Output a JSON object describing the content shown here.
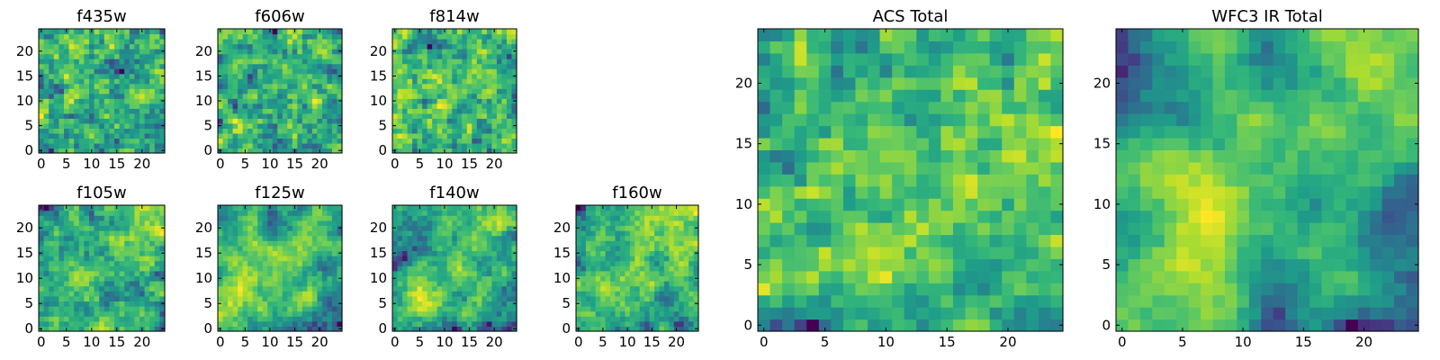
{
  "chart_data": [
    {
      "type": "heatmap",
      "title": "f435w",
      "grid_size": 25,
      "xticks": [
        0,
        5,
        10,
        15,
        20
      ],
      "yticks": [
        0,
        5,
        10,
        15,
        20
      ],
      "xlim": [
        -0.5,
        24.5
      ],
      "ylim": [
        -0.5,
        24.5
      ],
      "colormap": "viridis",
      "seed": 11,
      "smoothness": 0.2
    },
    {
      "type": "heatmap",
      "title": "f606w",
      "grid_size": 25,
      "xticks": [
        0,
        5,
        10,
        15,
        20
      ],
      "yticks": [
        0,
        5,
        10,
        15,
        20
      ],
      "xlim": [
        -0.5,
        24.5
      ],
      "ylim": [
        -0.5,
        24.5
      ],
      "colormap": "viridis",
      "seed": 23,
      "smoothness": 0.25
    },
    {
      "type": "heatmap",
      "title": "f814w",
      "grid_size": 25,
      "xticks": [
        0,
        5,
        10,
        15,
        20
      ],
      "yticks": [
        0,
        5,
        10,
        15,
        20
      ],
      "xlim": [
        -0.5,
        24.5
      ],
      "ylim": [
        -0.5,
        24.5
      ],
      "colormap": "viridis",
      "seed": 37,
      "smoothness": 0.3
    },
    {
      "type": "heatmap",
      "title": "f105w",
      "grid_size": 25,
      "xticks": [
        0,
        5,
        10,
        15,
        20
      ],
      "yticks": [
        0,
        5,
        10,
        15,
        20
      ],
      "xlim": [
        -0.5,
        24.5
      ],
      "ylim": [
        -0.5,
        24.5
      ],
      "colormap": "viridis",
      "seed": 41,
      "smoothness": 0.55
    },
    {
      "type": "heatmap",
      "title": "f125w",
      "grid_size": 25,
      "xticks": [
        0,
        5,
        10,
        15,
        20
      ],
      "yticks": [
        0,
        5,
        10,
        15,
        20
      ],
      "xlim": [
        -0.5,
        24.5
      ],
      "ylim": [
        -0.5,
        24.5
      ],
      "colormap": "viridis",
      "seed": 53,
      "smoothness": 0.6
    },
    {
      "type": "heatmap",
      "title": "f140w",
      "grid_size": 25,
      "xticks": [
        0,
        5,
        10,
        15,
        20
      ],
      "yticks": [
        0,
        5,
        10,
        15,
        20
      ],
      "xlim": [
        -0.5,
        24.5
      ],
      "ylim": [
        -0.5,
        24.5
      ],
      "colormap": "viridis",
      "seed": 67,
      "smoothness": 0.6
    },
    {
      "type": "heatmap",
      "title": "f160w",
      "grid_size": 25,
      "xticks": [
        0,
        5,
        10,
        15,
        20
      ],
      "yticks": [
        0,
        5,
        10,
        15,
        20
      ],
      "xlim": [
        -0.5,
        24.5
      ],
      "ylim": [
        -0.5,
        24.5
      ],
      "colormap": "viridis",
      "seed": 79,
      "smoothness": 0.65
    },
    {
      "type": "heatmap",
      "title": "ACS Total",
      "grid_size": 25,
      "xticks": [
        0,
        5,
        10,
        15,
        20
      ],
      "yticks": [
        0,
        5,
        10,
        15,
        20
      ],
      "xlim": [
        -0.5,
        24.5
      ],
      "ylim": [
        -0.5,
        24.5
      ],
      "colormap": "viridis",
      "seed": 97,
      "smoothness": 0.35
    },
    {
      "type": "heatmap",
      "title": "WFC3 IR Total",
      "grid_size": 25,
      "xticks": [
        0,
        5,
        10,
        15,
        20
      ],
      "yticks": [
        0,
        5,
        10,
        15,
        20
      ],
      "xlim": [
        -0.5,
        24.5
      ],
      "ylim": [
        -0.5,
        24.5
      ],
      "colormap": "viridis",
      "seed": 101,
      "smoothness": 0.75
    }
  ],
  "colors": {
    "viridis_low": "#440154",
    "viridis_mid_low": "#31688e",
    "viridis_mid": "#21918c",
    "viridis_mid_high": "#5ec962",
    "viridis_high": "#fde725"
  }
}
